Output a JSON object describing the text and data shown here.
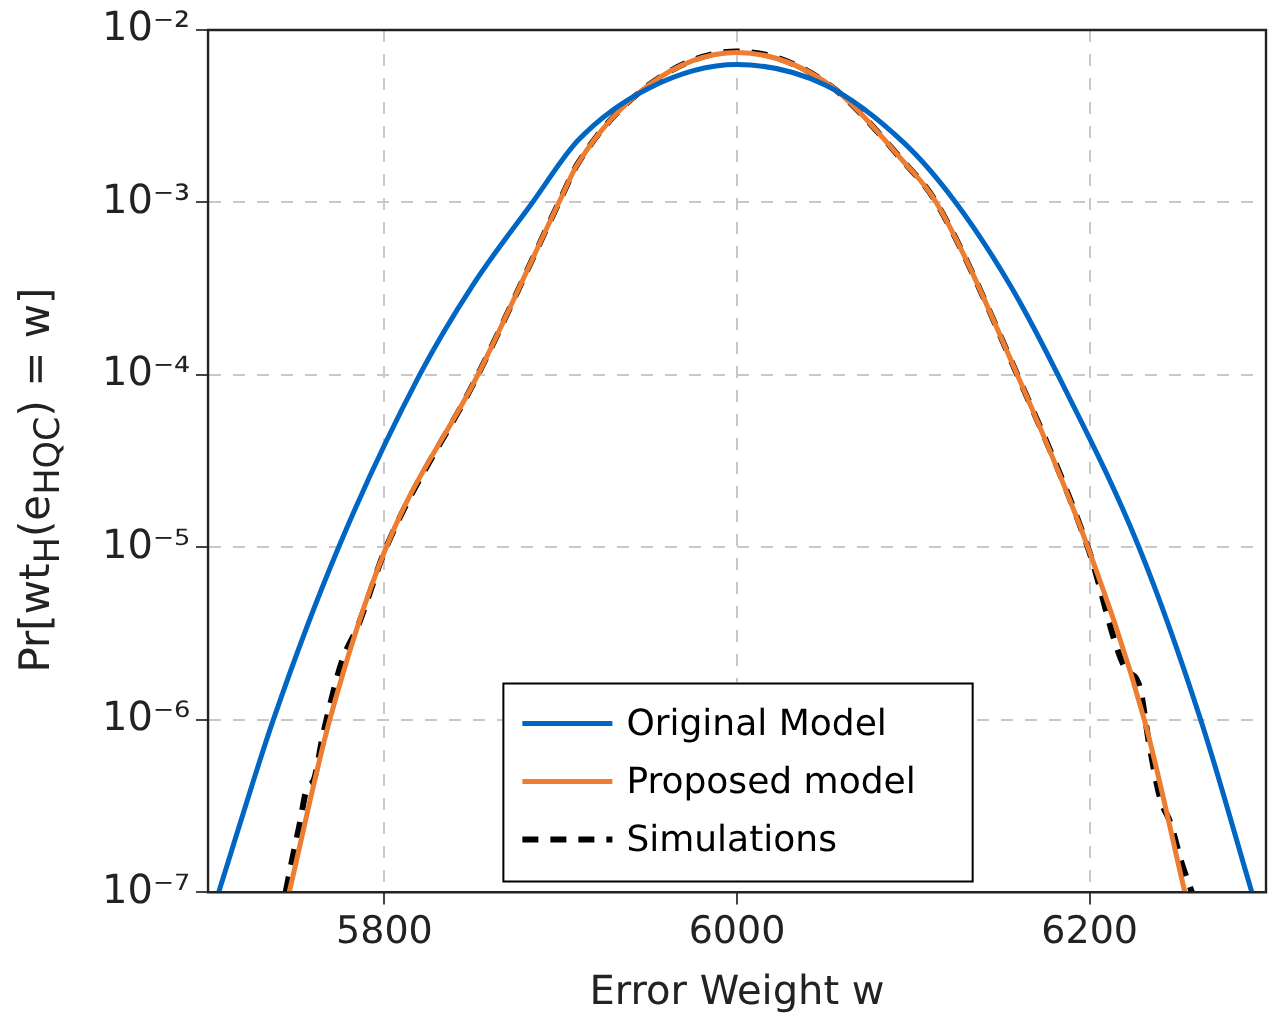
{
  "chart_data": {
    "type": "line",
    "xlabel": "Error Weight w",
    "ylabel": "Pr[wt$_{H}$(e$_{HQC}$) = w]",
    "xlim": [
      5700,
      6300
    ],
    "xticks": [
      5800,
      6000,
      6200
    ],
    "ylim": [
      1e-07,
      0.01
    ],
    "yticks": [
      {
        "value": 1e-07,
        "label": "10⁻⁷"
      },
      {
        "value": 1e-06,
        "label": "10⁻⁶"
      },
      {
        "value": 1e-05,
        "label": "10⁻⁵"
      },
      {
        "value": 0.0001,
        "label": "10⁻⁴"
      },
      {
        "value": 0.001,
        "label": "10⁻³"
      },
      {
        "value": 0.01,
        "label": "10⁻²"
      }
    ],
    "log": "y",
    "grid": true,
    "legend": "bottom",
    "marker": "none",
    "series": [
      {
        "name": "Original Model",
        "color": "#0066c4",
        "line_style": "solid",
        "x": [
          5706,
          5737,
          5774,
          5820,
          5850,
          5884,
          5910,
          5950,
          6000,
          6050,
          6095,
          6124,
          6155,
          6182,
          6228,
          6263,
          6292
        ],
        "values": [
          1e-07,
          1e-06,
          1e-05,
          0.0001,
          0.00033,
          0.001,
          0.0023,
          0.0046,
          0.0063,
          0.0048,
          0.0022,
          0.001,
          0.00033,
          0.0001,
          1e-05,
          1e-06,
          1e-07
        ]
      },
      {
        "name": "Proposed model",
        "color": "#ed7d31",
        "line_style": "solid",
        "x": [
          5746,
          5769,
          5801,
          5853,
          5899,
          5910,
          5950,
          6000,
          6050,
          6095,
          6113,
          6159,
          6199,
          6231,
          6254
        ],
        "values": [
          1e-07,
          1e-06,
          1e-05,
          0.0001,
          0.001,
          0.0017,
          0.0048,
          0.0074,
          0.005,
          0.0017,
          0.001,
          0.0001,
          1e-05,
          1e-06,
          1e-07
        ]
      },
      {
        "name": "Simulations",
        "color": "#000000",
        "line_style": "dashed",
        "x": [
          5744,
          5748,
          5752,
          5756,
          5760,
          5765,
          5769,
          5776,
          5785,
          5801,
          5853,
          5899,
          5910,
          5950,
          6000,
          6050,
          6095,
          6113,
          6159,
          6199,
          6220,
          6228,
          6234,
          6240,
          6246,
          6252,
          6258
        ],
        "values": [
          1e-07,
          1.6e-07,
          2.5e-07,
          4e-07,
          4.5e-07,
          8e-07,
          1.2e-06,
          2.2e-06,
          3.5e-06,
          1e-05,
          0.0001,
          0.001,
          0.0017,
          0.0048,
          0.0075,
          0.005,
          0.0017,
          0.001,
          0.0001,
          1e-05,
          2e-06,
          1.6e-06,
          7e-07,
          3.5e-07,
          2.5e-07,
          1.5e-07,
          1e-07
        ]
      }
    ]
  }
}
